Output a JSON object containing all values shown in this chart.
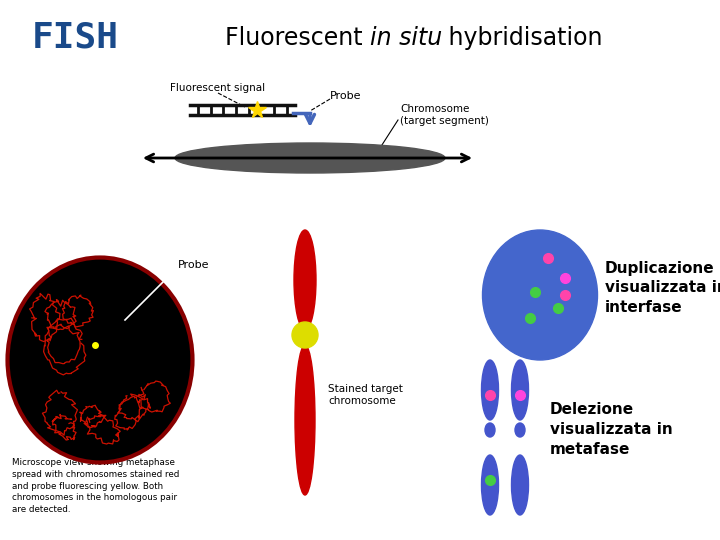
{
  "title_fish": "FISH",
  "title_fish_color": "#1a4a8a",
  "bg_color": "#ffffff",
  "duplication_text": [
    "Duplicazione",
    "visualizzata in",
    "interfase"
  ],
  "deletion_text": [
    "Delezione",
    "visualizzata in",
    "metafase"
  ],
  "fluorescent_signal_label": "Fluorescent signal",
  "probe_label_top": "Probe",
  "chromosome_label": "Chromosome\n(target segment)",
  "probe_label_mid": "Probe",
  "stained_label": "Stained target\nchromosome",
  "microscope_text": "Microscope view showing metaphase\nspread with chromosomes stained red\nand probe fluorescing yellow. Both\nchromosomes in the homologous pair\nare detected.",
  "chromosome_color": "#cc0000",
  "chromosome2_color": "#4455cc",
  "centromere_color": "#dddd00",
  "nucleus_bg": "#000000",
  "nucleus_border": "#880000",
  "blue_ellipse_color": "#4466cc",
  "pink_dot": "#ff44aa",
  "green_dot": "#44cc44",
  "magenta_dot": "#ff44dd",
  "ladder_color": "#111111",
  "arrow_blue": "#4466bb",
  "chrom_bar_color": "#555555"
}
